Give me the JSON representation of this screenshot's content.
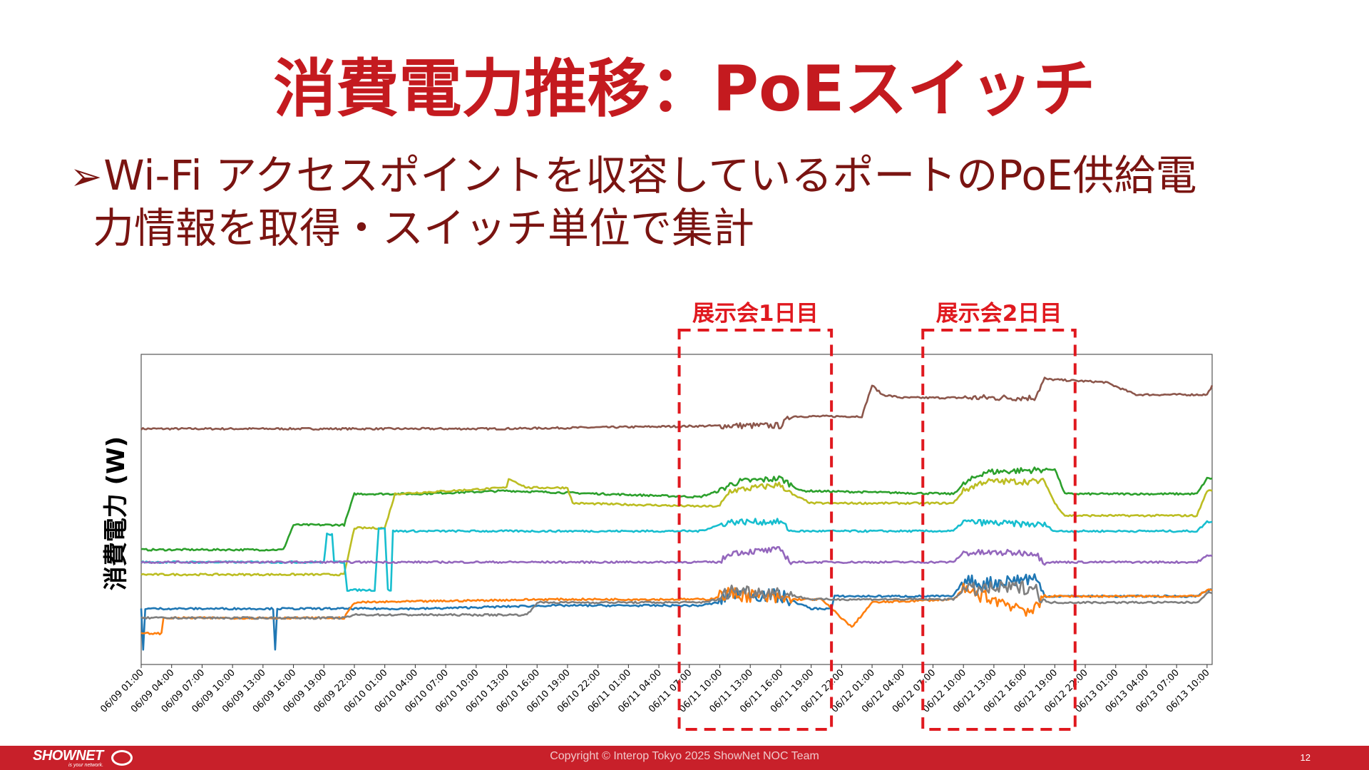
{
  "slide": {
    "title": "消費電力推移：PoEスイッチ",
    "bullet_mark": "➢",
    "bullet_line1": "Wi-Fi アクセスポイントを収容しているポートのPoE供給電",
    "bullet_line2": "力情報を取得・スイッチ単位で集計"
  },
  "annotations": [
    {
      "label": "展示会1日目",
      "start": "06/11 06:00",
      "end": "06/11 21:00"
    },
    {
      "label": "展示会2日目",
      "start": "06/12 06:00",
      "end": "06/12 21:00"
    }
  ],
  "chart_data": {
    "type": "line",
    "ylabel": "消費電力 (W)",
    "x_ticks": [
      "06/09 01:00",
      "06/09 04:00",
      "06/09 07:00",
      "06/09 10:00",
      "06/09 13:00",
      "06/09 16:00",
      "06/09 19:00",
      "06/09 22:00",
      "06/10 01:00",
      "06/10 04:00",
      "06/10 07:00",
      "06/10 10:00",
      "06/10 13:00",
      "06/10 16:00",
      "06/10 19:00",
      "06/10 22:00",
      "06/11 01:00",
      "06/11 04:00",
      "06/11 07:00",
      "06/11 10:00",
      "06/11 13:00",
      "06/11 16:00",
      "06/11 19:00",
      "06/11 22:00",
      "06/12 01:00",
      "06/12 04:00",
      "06/12 07:00",
      "06/12 10:00",
      "06/12 13:00",
      "06/12 16:00",
      "06/12 19:00",
      "06/12 22:00",
      "06/13 01:00",
      "06/13 04:00",
      "06/13 07:00",
      "06/13 10:00"
    ],
    "x_hours_range": [
      0,
      105.5
    ],
    "ylim": [
      0,
      100
    ],
    "grid": false,
    "legend": "none",
    "series": [
      {
        "color": "#8c564b",
        "points": [
          [
            0,
            76
          ],
          [
            35,
            76
          ],
          [
            58,
            77
          ],
          [
            63,
            77
          ],
          [
            64,
            80
          ],
          [
            71,
            80
          ],
          [
            72,
            90
          ],
          [
            73,
            87
          ],
          [
            75,
            86
          ],
          [
            82,
            86
          ],
          [
            88,
            86
          ],
          [
            89,
            92
          ],
          [
            95,
            91
          ],
          [
            98,
            87
          ],
          [
            105,
            87
          ],
          [
            105.5,
            90
          ]
        ]
      },
      {
        "color": "#2ca02c",
        "points": [
          [
            0,
            37
          ],
          [
            14,
            37
          ],
          [
            15,
            45
          ],
          [
            20,
            45
          ],
          [
            21,
            55
          ],
          [
            27,
            55
          ],
          [
            36,
            56
          ],
          [
            55,
            54
          ],
          [
            57,
            56
          ],
          [
            58,
            58
          ],
          [
            59,
            59
          ],
          [
            63,
            60
          ],
          [
            65,
            56
          ],
          [
            80,
            55
          ],
          [
            81,
            58
          ],
          [
            83,
            62
          ],
          [
            90,
            63
          ],
          [
            91,
            55
          ],
          [
            104,
            55
          ],
          [
            105,
            60
          ],
          [
            105.5,
            60
          ]
        ]
      },
      {
        "color": "#bcbd22",
        "points": [
          [
            0,
            29
          ],
          [
            20,
            29
          ],
          [
            21,
            44
          ],
          [
            24,
            44
          ],
          [
            25,
            55
          ],
          [
            36,
            57
          ],
          [
            36.2,
            60
          ],
          [
            38,
            57
          ],
          [
            42,
            57
          ],
          [
            42.5,
            52
          ],
          [
            55,
            51
          ],
          [
            57,
            51
          ],
          [
            58,
            56
          ],
          [
            63,
            58
          ],
          [
            64,
            55
          ],
          [
            66,
            52
          ],
          [
            80,
            52
          ],
          [
            81,
            56
          ],
          [
            83,
            59
          ],
          [
            89,
            59
          ],
          [
            90,
            52
          ],
          [
            91,
            48
          ],
          [
            104,
            48
          ],
          [
            105,
            56
          ],
          [
            105.5,
            56
          ]
        ]
      },
      {
        "color": "#17becf",
        "points": [
          [
            0,
            33
          ],
          [
            18,
            33
          ],
          [
            18.3,
            42
          ],
          [
            18.8,
            42
          ],
          [
            19,
            33
          ],
          [
            20,
            33
          ],
          [
            20.3,
            24
          ],
          [
            23,
            24
          ],
          [
            23.4,
            44
          ],
          [
            24,
            44
          ],
          [
            24.3,
            24
          ],
          [
            24.6,
            24
          ],
          [
            24.8,
            43
          ],
          [
            25,
            43
          ],
          [
            28,
            43
          ],
          [
            55,
            43
          ],
          [
            57,
            45
          ],
          [
            58,
            46
          ],
          [
            63,
            46
          ],
          [
            64,
            43
          ],
          [
            80,
            43
          ],
          [
            81,
            46
          ],
          [
            89,
            45
          ],
          [
            90,
            43
          ],
          [
            104,
            43
          ],
          [
            105,
            46
          ],
          [
            105.5,
            46
          ]
        ]
      },
      {
        "color": "#9467bd",
        "points": [
          [
            0,
            33
          ],
          [
            55,
            33
          ],
          [
            57,
            33
          ],
          [
            58,
            36
          ],
          [
            63,
            37
          ],
          [
            64,
            33
          ],
          [
            80,
            33
          ],
          [
            81,
            36
          ],
          [
            88,
            36
          ],
          [
            89,
            33
          ],
          [
            104,
            33
          ],
          [
            105,
            35
          ],
          [
            105.5,
            35
          ]
        ]
      },
      {
        "color": "#1f77b4",
        "points": [
          [
            0,
            18
          ],
          [
            0.2,
            5
          ],
          [
            0.4,
            18
          ],
          [
            13,
            18
          ],
          [
            13.2,
            5
          ],
          [
            13.4,
            18
          ],
          [
            28,
            18
          ],
          [
            40,
            19
          ],
          [
            55,
            19
          ],
          [
            57,
            20
          ],
          [
            58,
            23
          ],
          [
            63,
            22
          ],
          [
            66,
            18
          ],
          [
            68,
            18
          ],
          [
            68.3,
            22
          ],
          [
            80,
            22
          ],
          [
            81,
            27
          ],
          [
            83,
            26
          ],
          [
            88,
            28
          ],
          [
            89,
            22
          ],
          [
            104,
            22
          ],
          [
            105,
            24
          ],
          [
            105.5,
            24
          ]
        ]
      },
      {
        "color": "#ff7f0e",
        "points": [
          [
            0,
            10
          ],
          [
            2,
            10
          ],
          [
            2.2,
            15
          ],
          [
            20,
            15
          ],
          [
            21,
            20
          ],
          [
            40,
            21
          ],
          [
            56,
            21
          ],
          [
            58,
            23
          ],
          [
            63,
            21
          ],
          [
            67,
            21
          ],
          [
            70,
            12
          ],
          [
            72,
            20
          ],
          [
            80,
            21
          ],
          [
            81,
            24
          ],
          [
            86,
            19
          ],
          [
            88,
            17
          ],
          [
            89,
            22
          ],
          [
            104,
            22
          ],
          [
            105,
            24
          ],
          [
            105.5,
            24
          ]
        ]
      },
      {
        "color": "#7f7f7f",
        "points": [
          [
            0,
            15
          ],
          [
            20,
            15
          ],
          [
            21,
            16
          ],
          [
            38,
            16
          ],
          [
            39,
            20
          ],
          [
            55,
            20
          ],
          [
            57,
            21
          ],
          [
            58,
            24
          ],
          [
            63,
            23
          ],
          [
            66,
            21
          ],
          [
            80,
            21
          ],
          [
            81,
            24
          ],
          [
            88,
            25
          ],
          [
            89,
            20
          ],
          [
            104,
            20
          ],
          [
            105,
            23
          ],
          [
            105.5,
            23
          ]
        ]
      }
    ]
  },
  "footer": {
    "copyright": "Copyright © Interop Tokyo 2025 ShowNet NOC Team",
    "page_number": "12",
    "logo_text": "SHOWNET",
    "logo_tagline": "is your network."
  }
}
